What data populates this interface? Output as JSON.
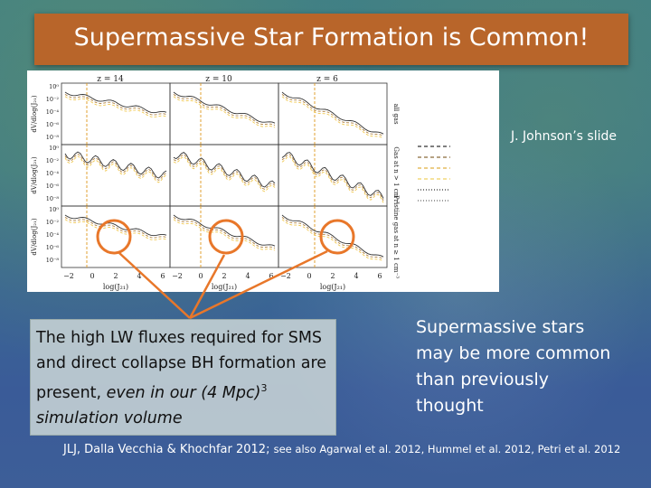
{
  "title": "Supermassive Star Formation is Common!",
  "figure": {
    "panel_titles": [
      "z = 14",
      "z = 10",
      "z = 6"
    ],
    "row_labels": [
      "all gas",
      "Gas at n > 1 cm⁻³",
      "Pristine gas at n ≥ 1 cm⁻³"
    ],
    "y_label": "dV/dlog(J₂₁)",
    "y_ticks": [
      "10⁰",
      "10⁻²",
      "10⁻⁴",
      "10⁻⁶",
      "10⁻⁸"
    ],
    "x_ticks": [
      "−2",
      "0",
      "2",
      "4",
      "6"
    ],
    "x_label": "log(J₂₁)"
  },
  "credit": "J. Johnson’s slide",
  "left_box": {
    "plain": "The high LW fluxes required for SMS and direct collapse  BH formation are present, ",
    "italic": "even in our (4 Mpc)",
    "superscript": "3",
    "italic_end": " simulation volume"
  },
  "right_text": "Supermassive stars may be more common than previously thought",
  "citation": {
    "main": "JLJ, Dalla Vecchia & Khochfar 2012; ",
    "also": "see also Agarwal et al. 2012, Hummel et al. 2012, Petri et al. 2012"
  }
}
